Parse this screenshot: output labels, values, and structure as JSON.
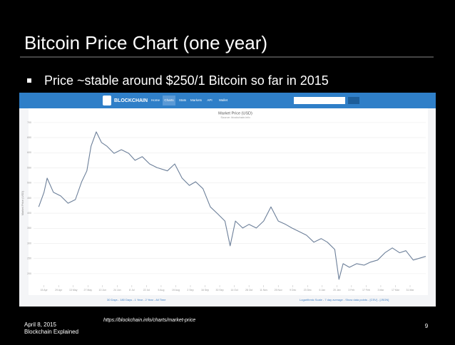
{
  "slide": {
    "title": "Bitcoin Price Chart (one year)",
    "bullet": "Price ~stable around $250/1 Bitcoin so far in 2015",
    "source_url": "https://blockchain.info/charts/market-price",
    "date": "April 8, 2015",
    "footer": "Blockchain Explained",
    "page_number": "9"
  },
  "screenshot": {
    "logo": "BLOCKCHAIN",
    "nav": [
      "Home",
      "Charts",
      "Stats",
      "Markets",
      "API",
      "Wallet"
    ],
    "range_links": "30 Days - 180 Days - 1 Year - 2 Year - All Time",
    "options_links": "Logarithmic Scale - 7 day average - Show data points - [CSV] - [JSON]"
  },
  "chart_data": {
    "type": "line",
    "title": "Market Price (USD)",
    "subtitle": "Source: blockchain.info",
    "y_label": "Market Price (USD)",
    "color": "#6c7f99",
    "x": [
      -5,
      0,
      3,
      9,
      16,
      23,
      30,
      36,
      41,
      45,
      50,
      55,
      60,
      67,
      74,
      81,
      87,
      94,
      101,
      108,
      118,
      125,
      132,
      139,
      145,
      152,
      159,
      166,
      173,
      178,
      183,
      190,
      196,
      203,
      210,
      217,
      224,
      231,
      237,
      244,
      251,
      258,
      265,
      271,
      278,
      282,
      286,
      292,
      299,
      306,
      312,
      319,
      326,
      333,
      340,
      346,
      353,
      360,
      365
    ],
    "values": [
      421,
      469,
      516,
      469,
      457,
      433,
      445,
      504,
      540,
      622,
      669,
      634,
      622,
      598,
      610,
      598,
      575,
      587,
      563,
      551,
      540,
      563,
      516,
      492,
      504,
      481,
      421,
      398,
      374,
      292,
      374,
      351,
      363,
      351,
      374,
      421,
      374,
      363,
      351,
      339,
      327,
      304,
      316,
      304,
      280,
      181,
      233,
      221,
      233,
      228,
      238,
      245,
      269,
      285,
      269,
      276,
      245,
      252,
      257
    ],
    "xlim": [
      -10,
      365
    ],
    "ylim": [
      162,
      728
    ],
    "yticks": [
      200,
      250,
      300,
      350,
      400,
      450,
      500,
      550,
      600,
      650,
      700
    ],
    "xticks": [
      {
        "value": 0,
        "label": "15 Apr"
      },
      {
        "value": 14,
        "label": "29 Apr"
      },
      {
        "value": 28,
        "label": "13 May"
      },
      {
        "value": 42,
        "label": "27 May"
      },
      {
        "value": 56,
        "label": "10 Jun"
      },
      {
        "value": 70,
        "label": "24 Jun"
      },
      {
        "value": 84,
        "label": "8 Jul"
      },
      {
        "value": 98,
        "label": "22 Jul"
      },
      {
        "value": 112,
        "label": "5 Aug"
      },
      {
        "value": 126,
        "label": "19 Aug"
      },
      {
        "value": 140,
        "label": "2 Sep"
      },
      {
        "value": 154,
        "label": "16 Sep"
      },
      {
        "value": 168,
        "label": "30 Sep"
      },
      {
        "value": 182,
        "label": "14 Oct"
      },
      {
        "value": 196,
        "label": "28 Oct"
      },
      {
        "value": 210,
        "label": "11 Nov"
      },
      {
        "value": 224,
        "label": "25 Nov"
      },
      {
        "value": 238,
        "label": "9 Dec"
      },
      {
        "value": 252,
        "label": "23 Dec"
      },
      {
        "value": 266,
        "label": "6 Jan"
      },
      {
        "value": 280,
        "label": "20 Jan"
      },
      {
        "value": 294,
        "label": "3 Feb"
      },
      {
        "value": 308,
        "label": "17 Feb"
      },
      {
        "value": 322,
        "label": "3 Mar"
      },
      {
        "value": 336,
        "label": "17 Mar"
      },
      {
        "value": 350,
        "label": "31 Mar"
      }
    ],
    "grid": true
  }
}
